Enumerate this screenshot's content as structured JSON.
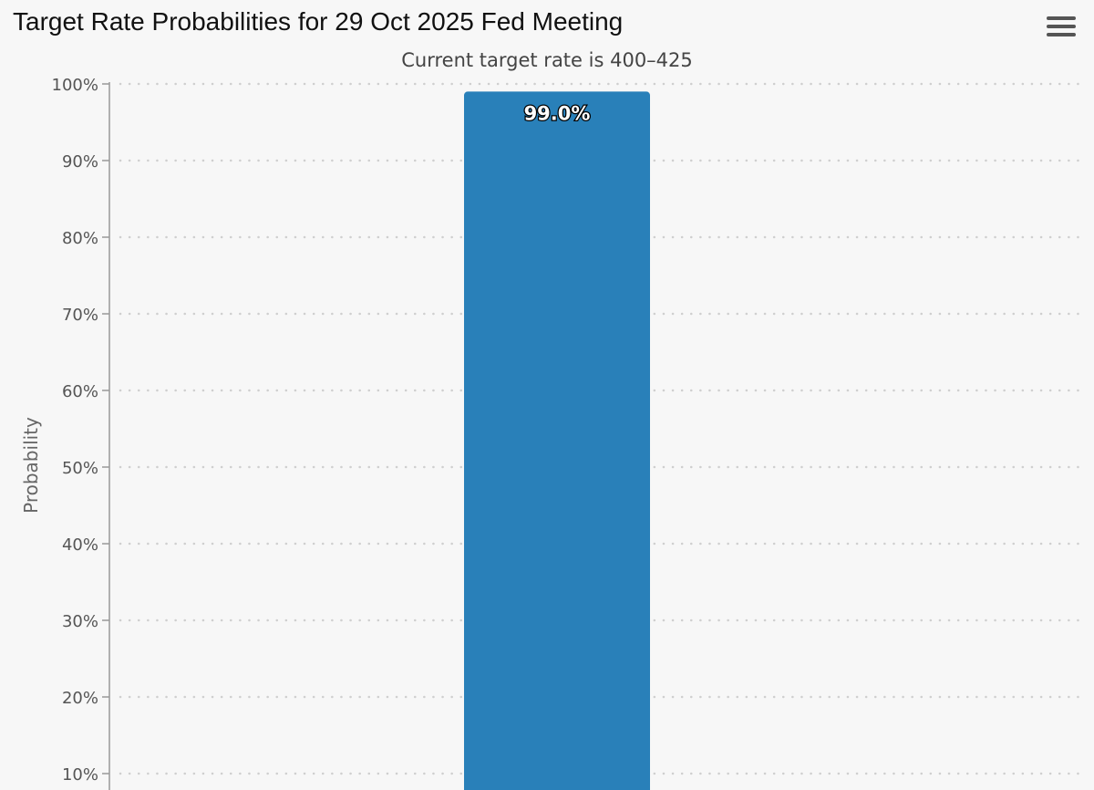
{
  "chart_data": {
    "type": "bar",
    "title": "Target Rate Probabilities for 29 Oct 2025 Fed Meeting",
    "subtitle": "Current target rate is 400–425",
    "ylabel": "Probability",
    "xlabel": "",
    "ylim": [
      0,
      100
    ],
    "yticks": [
      {
        "value": 10,
        "label": "10%"
      },
      {
        "value": 20,
        "label": "20%"
      },
      {
        "value": 30,
        "label": "30%"
      },
      {
        "value": 40,
        "label": "40%"
      },
      {
        "value": 50,
        "label": "50%"
      },
      {
        "value": 60,
        "label": "60%"
      },
      {
        "value": 70,
        "label": "70%"
      },
      {
        "value": 80,
        "label": "80%"
      },
      {
        "value": 90,
        "label": "90%"
      },
      {
        "value": 100,
        "label": "100%"
      }
    ],
    "values": [
      99.0
    ],
    "data_labels": [
      "99.0%"
    ],
    "bar_color": "#2980b9",
    "grid": "dotted horizontal",
    "legend": "none"
  },
  "menu": {
    "icon": "hamburger-menu-icon"
  }
}
